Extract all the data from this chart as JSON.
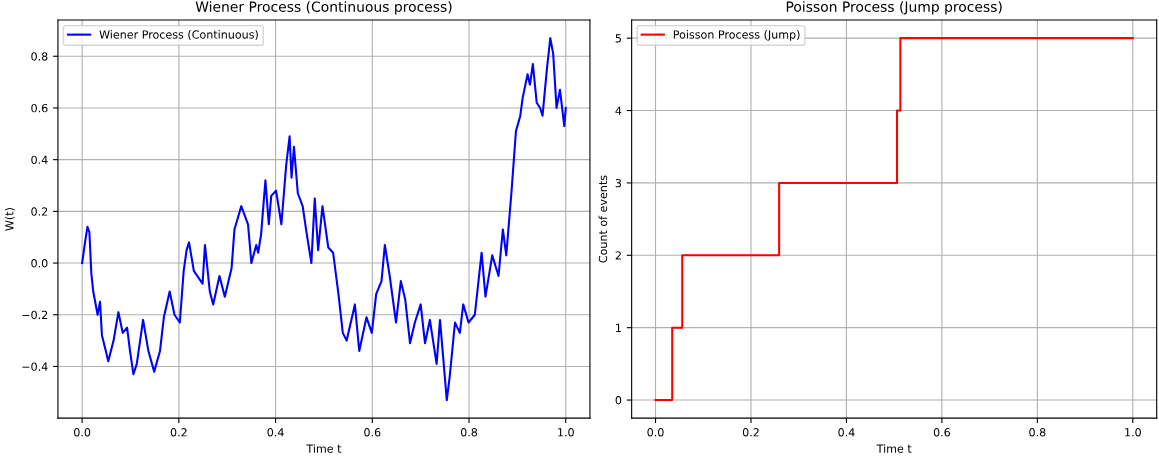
{
  "chart_data": [
    {
      "type": "line",
      "title": "Wiener Process (Continuous process)",
      "xlabel": "Time t",
      "ylabel": "W(t)",
      "series": [
        {
          "name": "Wiener Process (Continuous)",
          "color": "#0000ff",
          "x": [
            0,
            0.006,
            0.011,
            0.015,
            0.019,
            0.023,
            0.032,
            0.037,
            0.041,
            0.049,
            0.054,
            0.065,
            0.075,
            0.084,
            0.093,
            0.099,
            0.106,
            0.113,
            0.126,
            0.137,
            0.149,
            0.161,
            0.169,
            0.181,
            0.191,
            0.202,
            0.21,
            0.216,
            0.221,
            0.231,
            0.249,
            0.254,
            0.264,
            0.271,
            0.284,
            0.295,
            0.309,
            0.315,
            0.329,
            0.343,
            0.35,
            0.36,
            0.364,
            0.37,
            0.379,
            0.386,
            0.391,
            0.401,
            0.412,
            0.422,
            0.429,
            0.433,
            0.438,
            0.446,
            0.456,
            0.463,
            0.474,
            0.481,
            0.488,
            0.497,
            0.509,
            0.519,
            0.53,
            0.539,
            0.547,
            0.564,
            0.573,
            0.588,
            0.599,
            0.608,
            0.619,
            0.626,
            0.636,
            0.649,
            0.659,
            0.668,
            0.678,
            0.688,
            0.7,
            0.709,
            0.719,
            0.733,
            0.74,
            0.754,
            0.76,
            0.771,
            0.781,
            0.788,
            0.799,
            0.812,
            0.826,
            0.834,
            0.848,
            0.861,
            0.87,
            0.877,
            0.888,
            0.897,
            0.906,
            0.911,
            0.921,
            0.926,
            0.932,
            0.94,
            0.947,
            0.952,
            0.961,
            0.968,
            0.974,
            0.981,
            0.988,
            0.997,
            1.0
          ],
          "values": [
            0,
            0.08,
            0.14,
            0.12,
            -0.04,
            -0.11,
            -0.2,
            -0.15,
            -0.28,
            -0.34,
            -0.38,
            -0.3,
            -0.19,
            -0.27,
            -0.25,
            -0.34,
            -0.43,
            -0.39,
            -0.22,
            -0.34,
            -0.42,
            -0.34,
            -0.21,
            -0.11,
            -0.2,
            -0.23,
            -0.03,
            0.05,
            0.08,
            -0.03,
            -0.08,
            0.07,
            -0.11,
            -0.16,
            -0.05,
            -0.13,
            -0.02,
            0.13,
            0.22,
            0.15,
            0.0,
            0.07,
            0.04,
            0.11,
            0.32,
            0.15,
            0.26,
            0.28,
            0.15,
            0.38,
            0.49,
            0.33,
            0.45,
            0.27,
            0.22,
            0.13,
            0.0,
            0.25,
            0.05,
            0.22,
            0.06,
            0.04,
            -0.12,
            -0.27,
            -0.3,
            -0.16,
            -0.34,
            -0.21,
            -0.27,
            -0.12,
            -0.07,
            0.07,
            -0.05,
            -0.23,
            -0.07,
            -0.14,
            -0.31,
            -0.23,
            -0.16,
            -0.31,
            -0.22,
            -0.39,
            -0.22,
            -0.53,
            -0.44,
            -0.23,
            -0.27,
            -0.16,
            -0.23,
            -0.2,
            0.04,
            -0.13,
            0.03,
            -0.05,
            0.13,
            0.03,
            0.28,
            0.51,
            0.57,
            0.64,
            0.73,
            0.69,
            0.77,
            0.62,
            0.6,
            0.57,
            0.75,
            0.87,
            0.81,
            0.6,
            0.67,
            0.53,
            0.6
          ]
        }
      ],
      "xlim": [
        -0.05,
        1.05
      ],
      "ylim": [
        -0.6,
        0.94
      ],
      "xticks": [
        {
          "value": 0,
          "label": "0.0"
        },
        {
          "value": 0.2,
          "label": "0.2"
        },
        {
          "value": 0.4,
          "label": "0.4"
        },
        {
          "value": 0.6,
          "label": "0.6"
        },
        {
          "value": 0.8,
          "label": "0.8"
        },
        {
          "value": 1,
          "label": "1.0"
        }
      ],
      "yticks": [
        {
          "value": -0.4,
          "label": "−0.4"
        },
        {
          "value": -0.2,
          "label": "−0.2"
        },
        {
          "value": 0,
          "label": "0.0"
        },
        0.2,
        0.4,
        0.6,
        0.8
      ],
      "grid": true,
      "legend": "top left"
    },
    {
      "type": "step",
      "title": "Poisson Process (Jump process)",
      "xlabel": "Time t",
      "ylabel": "Count of events",
      "series": [
        {
          "name": "Poisson Process (Jump)",
          "color": "#ff0000",
          "x": [
            0,
            0.035,
            0.056,
            0.259,
            0.506,
            0.513,
            1.0
          ],
          "values": [
            0,
            1,
            2,
            3,
            4,
            5,
            5
          ]
        }
      ],
      "xlim": [
        -0.05,
        1.05
      ],
      "ylim": [
        -0.25,
        5.25
      ],
      "xticks": [
        {
          "value": 0,
          "label": "0.0"
        },
        {
          "value": 0.2,
          "label": "0.2"
        },
        {
          "value": 0.4,
          "label": "0.4"
        },
        {
          "value": 0.6,
          "label": "0.6"
        },
        {
          "value": 0.8,
          "label": "0.8"
        },
        {
          "value": 1,
          "label": "1.0"
        }
      ],
      "yticks": [
        0,
        1,
        2,
        3,
        4,
        5
      ],
      "grid": true,
      "legend": "top left"
    }
  ]
}
